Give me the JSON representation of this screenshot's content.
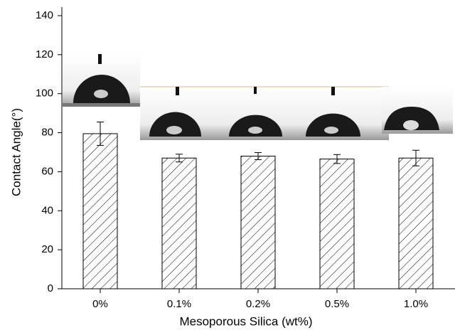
{
  "chart_data": {
    "type": "bar",
    "x_label": "Mesoporous Silica (wt%)",
    "y_label": "Contact Angle(°)",
    "categories": [
      "0%",
      "0.1%",
      "0.2%",
      "0.5%",
      "1.0%"
    ],
    "values": [
      79.5,
      67,
      68,
      66.5,
      67
    ],
    "errors": [
      6,
      2,
      1.8,
      2.3,
      4
    ],
    "color": "#000000",
    "ylim": [
      0,
      140
    ],
    "yticks": [
      0,
      20,
      40,
      60,
      80,
      100,
      120,
      140
    ]
  }
}
